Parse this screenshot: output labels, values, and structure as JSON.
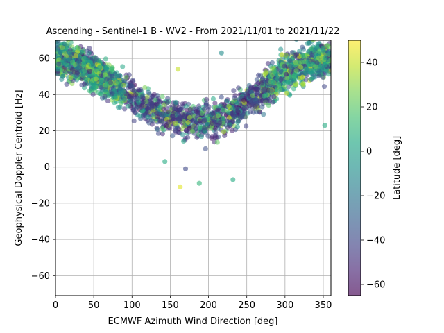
{
  "chart_data": {
    "type": "scatter",
    "title": "Ascending - Sentinel-1 B - WV2 - From 2021/11/01 to 2021/11/22",
    "xlabel": "ECMWF Azimuth Wind Direction [deg]",
    "ylabel": "Geophysical Doppler Centroid [Hz]",
    "xlim": [
      0,
      360
    ],
    "ylim": [
      -71,
      70
    ],
    "xticks": [
      0,
      50,
      100,
      150,
      200,
      250,
      300,
      350
    ],
    "yticks": [
      -60,
      -40,
      -20,
      0,
      20,
      40,
      60
    ],
    "grid": true,
    "colorbar": {
      "label": "Latitude [deg]",
      "range": [
        -65,
        50
      ],
      "ticks": [
        -60,
        -40,
        -20,
        0,
        20,
        40
      ],
      "colormap": "viridis",
      "alpha": 0.6
    },
    "trend": {
      "description": "Doppler follows a cosine-like curve of wind direction: ~55-60 Hz near 0 and 360 deg, minimum ~25 Hz near 180-200 deg",
      "points": [
        {
          "x": 0,
          "y": 60
        },
        {
          "x": 30,
          "y": 57
        },
        {
          "x": 60,
          "y": 50
        },
        {
          "x": 90,
          "y": 42
        },
        {
          "x": 120,
          "y": 33
        },
        {
          "x": 150,
          "y": 28
        },
        {
          "x": 180,
          "y": 25
        },
        {
          "x": 210,
          "y": 26
        },
        {
          "x": 240,
          "y": 32
        },
        {
          "x": 270,
          "y": 42
        },
        {
          "x": 300,
          "y": 52
        },
        {
          "x": 330,
          "y": 58
        },
        {
          "x": 360,
          "y": 60
        }
      ]
    },
    "outliers": [
      {
        "x": 163,
        "y": -11,
        "lat": 45
      },
      {
        "x": 188,
        "y": -9,
        "lat": 10
      },
      {
        "x": 232,
        "y": -7,
        "lat": 5
      },
      {
        "x": 143,
        "y": 3,
        "lat": 5
      },
      {
        "x": 170,
        "y": -1,
        "lat": -40
      },
      {
        "x": 352,
        "y": 23,
        "lat": 5
      },
      {
        "x": 217,
        "y": 63,
        "lat": -10
      },
      {
        "x": 160,
        "y": 54,
        "lat": 40
      },
      {
        "x": 296,
        "y": 62,
        "lat": 45
      }
    ]
  }
}
